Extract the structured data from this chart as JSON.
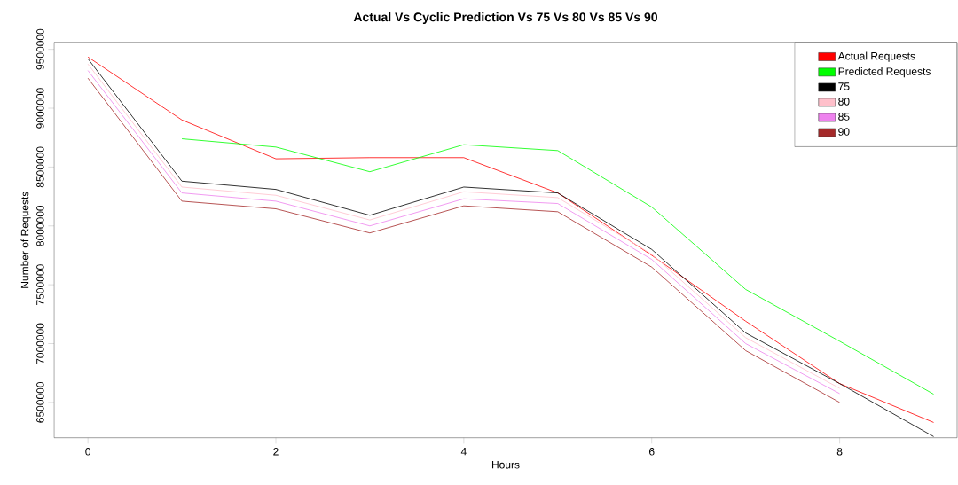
{
  "chart_data": {
    "type": "line",
    "title": "Actual Vs Cyclic Prediction Vs 75 Vs 80 Vs 85 Vs 90",
    "xlabel": "Hours",
    "ylabel": "Number of Requests",
    "x": [
      0,
      1,
      2,
      3,
      4,
      5,
      6,
      7,
      8,
      9
    ],
    "xlim": [
      -0.36,
      9.25
    ],
    "xticks": [
      0,
      2,
      4,
      6,
      8
    ],
    "ylim": [
      6200000,
      9560000
    ],
    "yticks": [
      6500000,
      7000000,
      7500000,
      8000000,
      8500000,
      9000000,
      9500000
    ],
    "grid": false,
    "legend": "top right",
    "series": [
      {
        "name": "Actual Requests",
        "color": "#ff0000",
        "values": [
          9435000,
          8900000,
          8570000,
          8580000,
          8580000,
          8280000,
          7750000,
          7190000,
          6660000,
          6330000
        ]
      },
      {
        "name": "Predicted Requests",
        "color": "#00ff00",
        "values": [
          null,
          8740000,
          8670000,
          8460000,
          8690000,
          8640000,
          8160000,
          7460000,
          7020000,
          6570000
        ]
      },
      {
        "name": "75",
        "color": "#000000",
        "values": [
          9420000,
          8380000,
          8310000,
          8090000,
          8330000,
          8280000,
          7800000,
          7090000,
          6660000,
          6210000
        ]
      },
      {
        "name": "80",
        "color": "#ffc0cb",
        "values": [
          9375000,
          8330000,
          8260000,
          8050000,
          8290000,
          8240000,
          7760000,
          7050000,
          6620000,
          null
        ]
      },
      {
        "name": "85",
        "color": "#ee82ee",
        "values": [
          9320000,
          8280000,
          8210000,
          8000000,
          8230000,
          8190000,
          7715000,
          7000000,
          6575000,
          null
        ]
      },
      {
        "name": "90",
        "color": "#a52a2a",
        "values": [
          9255000,
          8210000,
          8145000,
          7940000,
          8170000,
          8120000,
          7650000,
          6940000,
          6500000,
          null
        ]
      }
    ]
  }
}
